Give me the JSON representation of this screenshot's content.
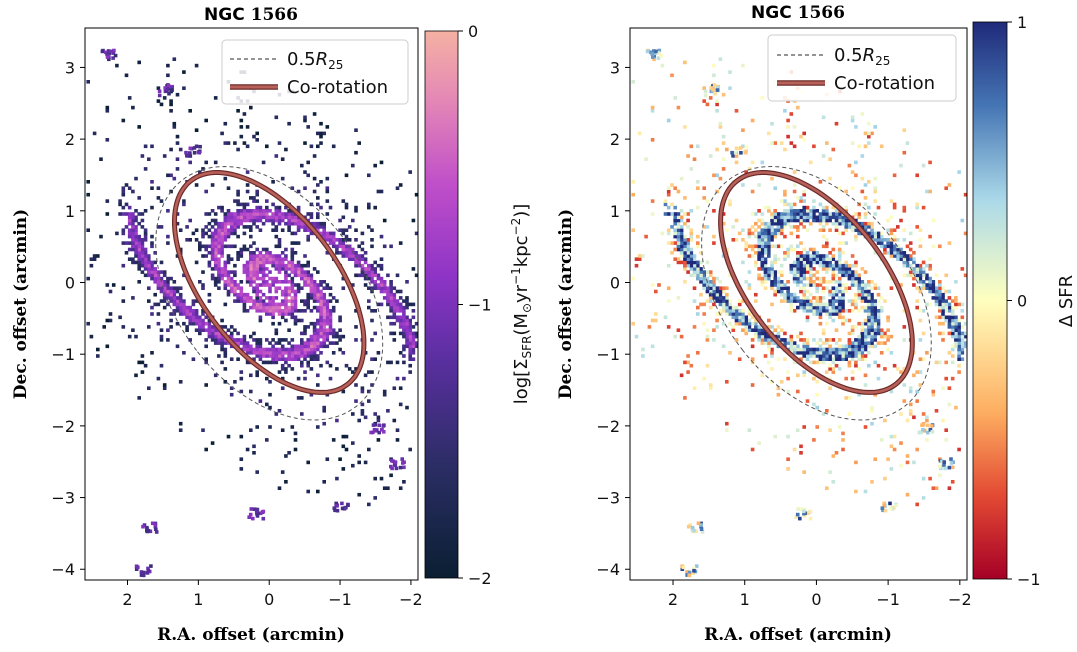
{
  "chart_data": [
    {
      "type": "heatmap",
      "title": "NGC 1566",
      "xlabel": "R.A. offset (arcmin)",
      "ylabel": "Dec. offset (arcmin)",
      "xlim": [
        2.6,
        -2.1
      ],
      "ylim": [
        -4.15,
        3.55
      ],
      "xticks": [
        2,
        1,
        0,
        -1,
        -2
      ],
      "yticks": [
        3,
        2,
        1,
        0,
        -1,
        -2,
        -3,
        -4
      ],
      "xtick_labels": [
        "2",
        "1",
        "0",
        "−1",
        "−2"
      ],
      "ytick_labels": [
        "3",
        "2",
        "1",
        "0",
        "−1",
        "−2",
        "−3",
        "−4"
      ],
      "colorbar": {
        "label": "log[ΣSFR(M⊙yr⁻¹kpc⁻²)]",
        "range": [
          -2,
          0
        ],
        "ticks": [
          0,
          -1,
          -2
        ],
        "tick_labels": [
          "0",
          "−1",
          "−2"
        ],
        "colormap": "magma"
      },
      "legend": {
        "placement": "upper-right",
        "entries": [
          {
            "label": "0.5R25",
            "style": "dashed",
            "color": "#555555"
          },
          {
            "label": "Co-rotation",
            "style": "solid",
            "color": "#a85450"
          }
        ]
      }
    },
    {
      "type": "heatmap",
      "title": "NGC 1566",
      "xlabel": "R.A. offset (arcmin)",
      "ylabel": "Dec. offset (arcmin)",
      "xlim": [
        2.6,
        -2.1
      ],
      "ylim": [
        -4.15,
        3.55
      ],
      "xticks": [
        2,
        1,
        0,
        -1,
        -2
      ],
      "yticks": [
        3,
        2,
        1,
        0,
        -1,
        -2,
        -3,
        -4
      ],
      "xtick_labels": [
        "2",
        "1",
        "0",
        "−1",
        "−2"
      ],
      "ytick_labels": [
        "3",
        "2",
        "1",
        "0",
        "−1",
        "−2",
        "−3",
        "−4"
      ],
      "colorbar": {
        "label": "Δ SFR",
        "range": [
          -1,
          1
        ],
        "ticks": [
          1,
          0,
          -1
        ],
        "tick_labels": [
          "1",
          "0",
          "−1"
        ],
        "colormap": "RdYlBu"
      },
      "legend": {
        "placement": "upper-right",
        "entries": [
          {
            "label": "0.5R25",
            "style": "dashed",
            "color": "#555555"
          },
          {
            "label": "Co-rotation",
            "style": "solid",
            "color": "#a85450"
          }
        ]
      }
    }
  ],
  "ellipses": {
    "r25_half": {
      "center": [
        0.0,
        -0.15
      ],
      "semi_major": 2.0,
      "semi_minor": 1.3,
      "pa_deg": 38
    },
    "corotation": {
      "center": [
        0.0,
        0.0
      ],
      "semi_major": 1.8,
      "semi_minor": 0.95,
      "pa_deg": 38
    }
  },
  "text": {
    "panel_title_bold": "NGC",
    "panel_title_num": "1566",
    "legend_r_prefix": "0.5",
    "legend_r_sym": "R",
    "legend_r_sub": "25",
    "legend_corot": "Co-rotation",
    "cb1_label_pre": "log[Σ",
    "cb1_label_sub": "SFR",
    "cb1_label_post": "(M",
    "cb1_label_sun": "⊙",
    "cb1_label_yr": "yr",
    "cb1_label_exp1": "−1",
    "cb1_label_kpc": "kpc",
    "cb1_label_exp2": "−2",
    "cb1_label_close": ")]",
    "cb2_label": "Δ SFR"
  }
}
